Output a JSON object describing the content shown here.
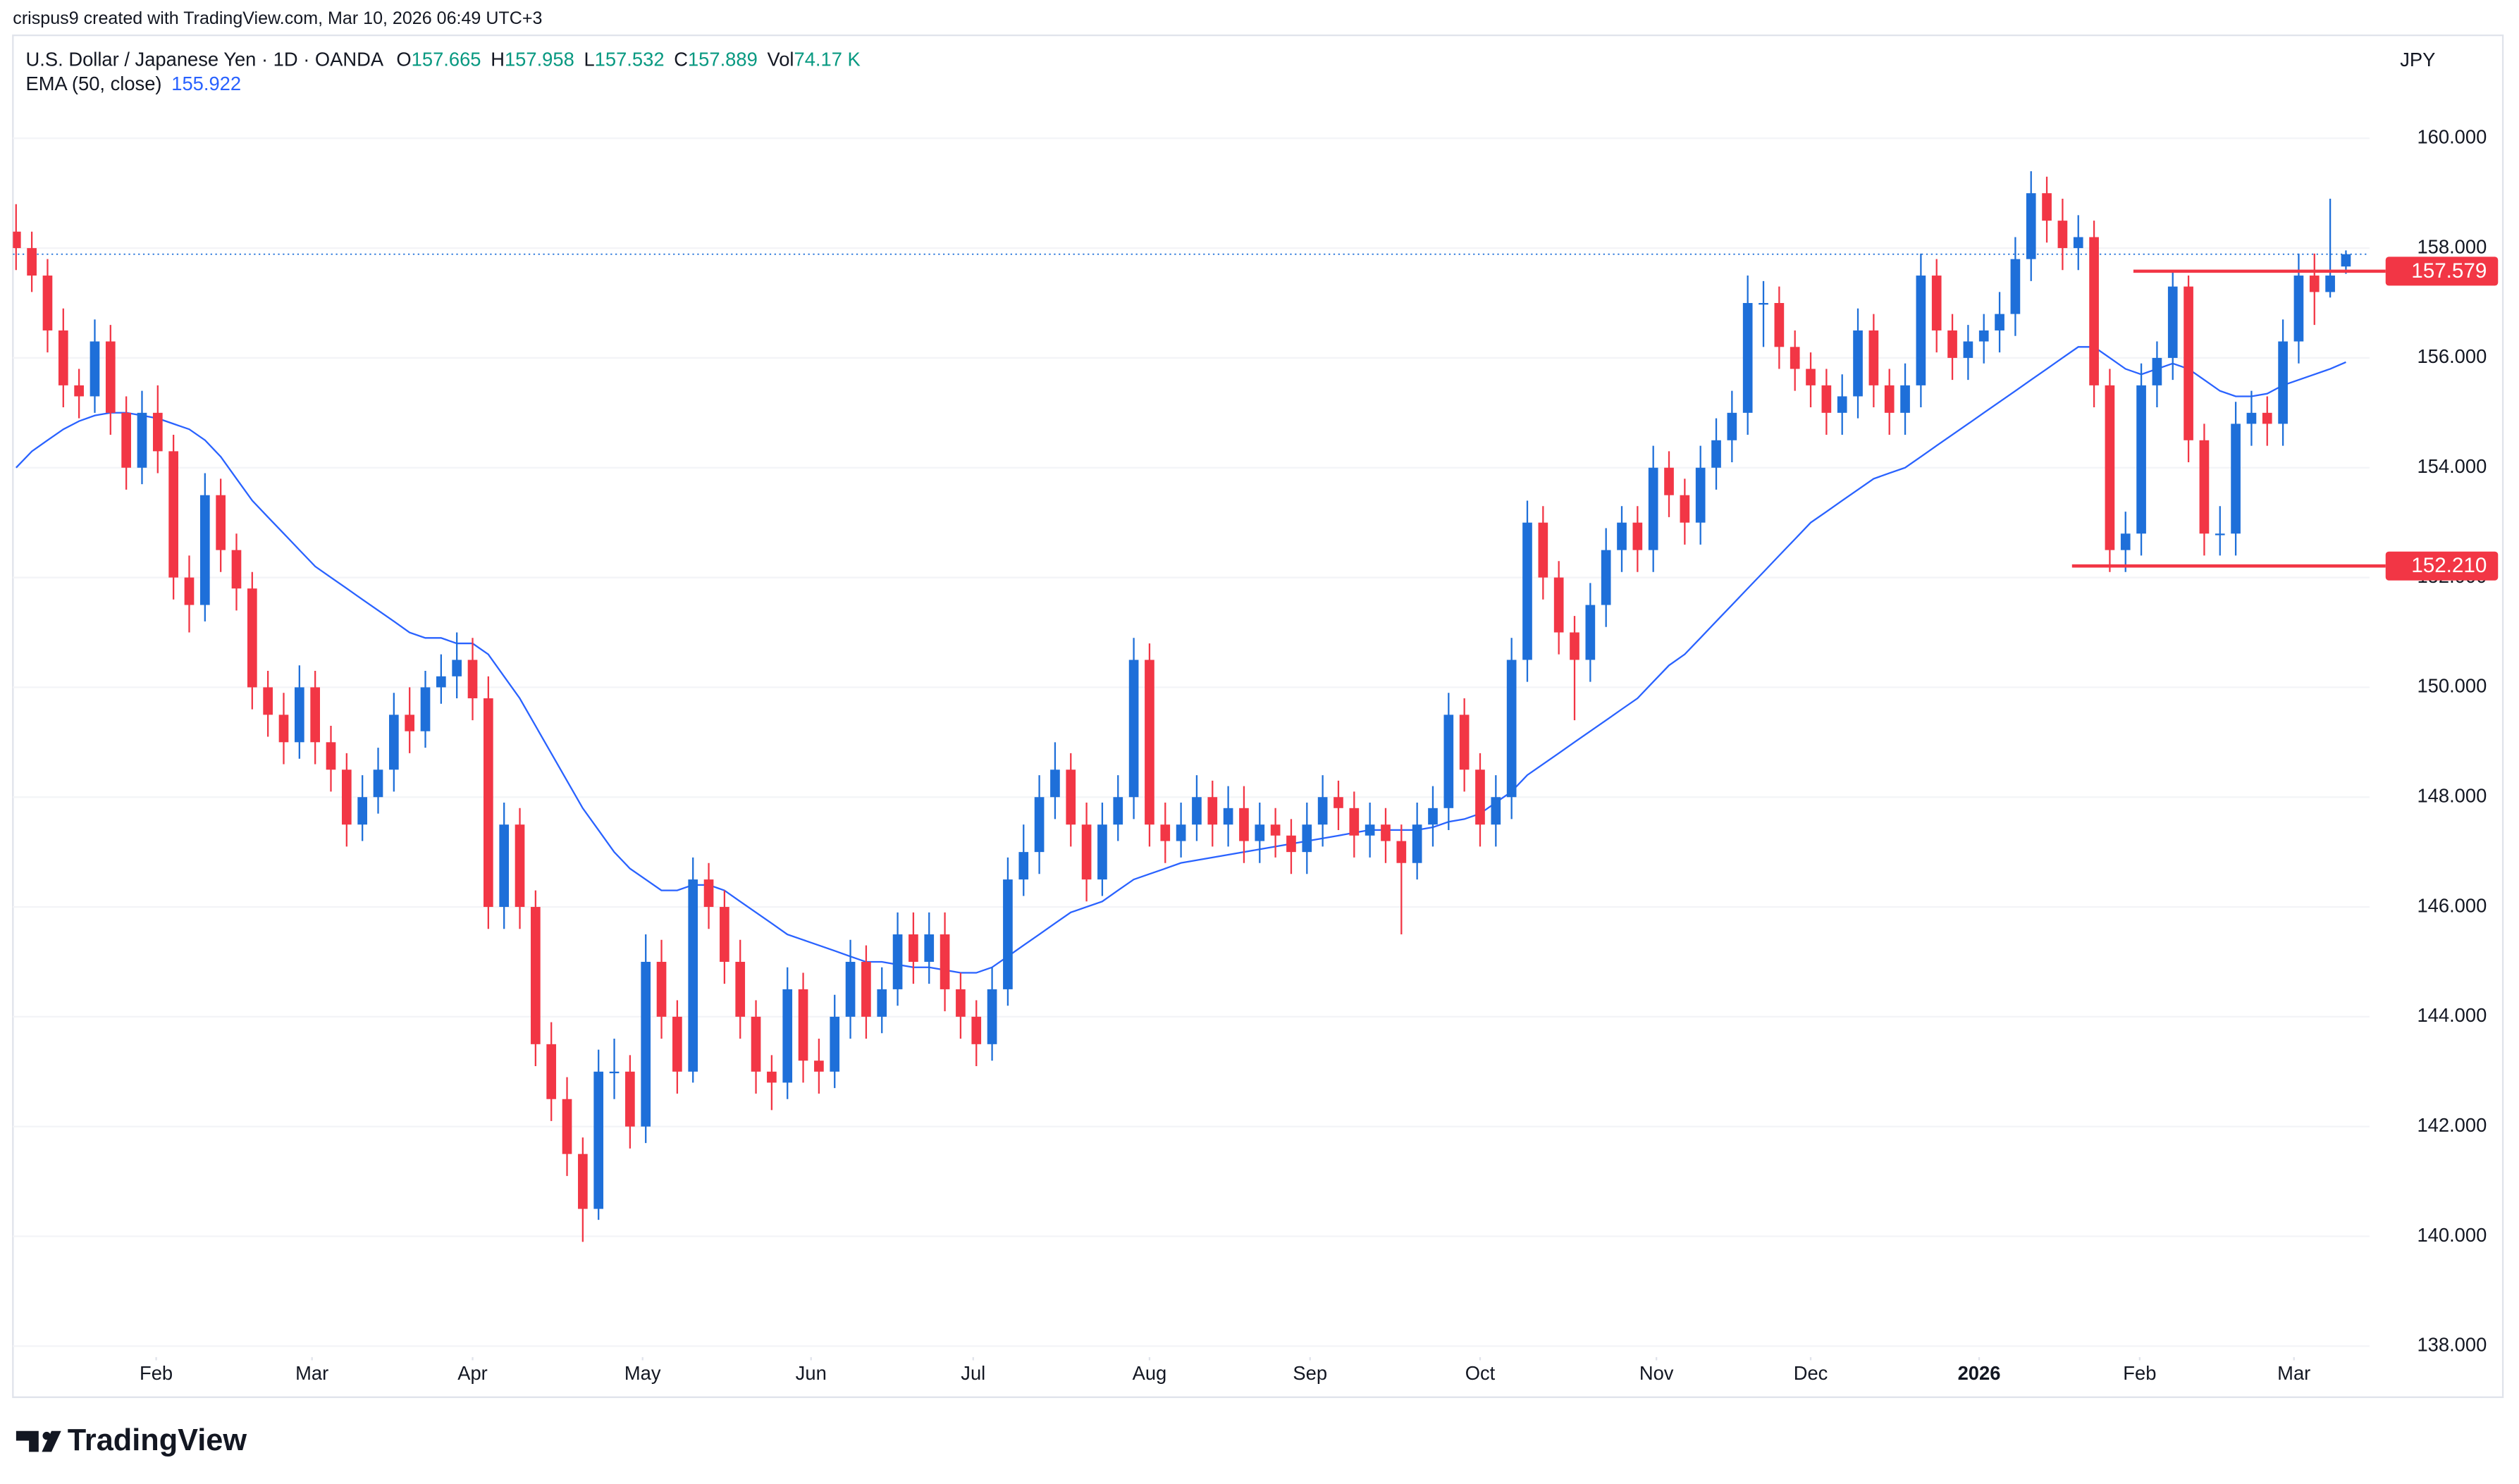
{
  "chart_data": {
    "type": "candlestick",
    "credit": "crispus9 created with TradingView.com, Mar 10, 2026 06:49 UTC+3",
    "title": "U.S. Dollar / Japanese Yen · 1D · OANDA",
    "legend_labels": {
      "open": "O",
      "high": "H",
      "low": "L",
      "close": "C",
      "volume": "Vol"
    },
    "volume": "74.17 K",
    "currency": "JPY",
    "brand": "TradingView",
    "up_color": "#1e6fd9",
    "down_color": "#f23645",
    "xlim": [
      -0.2,
      149.5
    ],
    "xticks": [
      {
        "value": 8.9,
        "label": "Feb"
      },
      {
        "value": 18.8,
        "label": "Mar"
      },
      {
        "value": 29,
        "label": "Apr"
      },
      {
        "value": 39.8,
        "label": "May"
      },
      {
        "value": 50.5,
        "label": "Jun"
      },
      {
        "value": 60.8,
        "label": "Jul"
      },
      {
        "value": 72,
        "label": "Aug"
      },
      {
        "value": 82.2,
        "label": "Sep"
      },
      {
        "value": 93,
        "label": "Oct"
      },
      {
        "value": 104.2,
        "label": "Nov"
      },
      {
        "value": 114,
        "label": "Dec"
      },
      {
        "value": 124.7,
        "label": "2026"
      },
      {
        "value": 134.9,
        "label": "Feb"
      },
      {
        "value": 144.7,
        "label": "Mar"
      }
    ],
    "ylim": [
      137.8,
      161.7
    ],
    "yticks": [
      {
        "value": 138,
        "label": "138.000"
      },
      {
        "value": 140,
        "label": "140.000"
      },
      {
        "value": 142,
        "label": "142.000"
      },
      {
        "value": 144,
        "label": "144.000"
      },
      {
        "value": 146,
        "label": "146.000"
      },
      {
        "value": 148,
        "label": "148.000"
      },
      {
        "value": 150,
        "label": "150.000"
      },
      {
        "value": 152,
        "label": "152.000"
      },
      {
        "value": 154,
        "label": "154.000"
      },
      {
        "value": 156,
        "label": "156.000"
      },
      {
        "value": 158,
        "label": "158.000"
      },
      {
        "value": 160,
        "label": "160.000"
      }
    ],
    "levels": [
      {
        "value": 157.579,
        "label": "157.579",
        "x_start": 134.5,
        "color": "#f23645"
      },
      {
        "value": 152.21,
        "label": "152.210",
        "x_start": 130.6,
        "color": "#f23645"
      }
    ],
    "open": [
      158.3,
      158.0,
      157.5,
      156.5,
      155.5,
      155.3,
      156.3,
      155.0,
      154.0,
      155.0,
      154.3,
      152.0,
      151.5,
      153.5,
      152.5,
      151.8,
      150.0,
      149.5,
      149.0,
      150.0,
      149.0,
      148.5,
      147.5,
      148.0,
      148.5,
      149.5,
      149.2,
      150.0,
      150.2,
      150.5,
      149.8,
      146.0,
      147.5,
      146.0,
      143.5,
      142.5,
      141.5,
      140.5,
      143.0,
      143.0,
      142.0,
      145.0,
      144.0,
      143.0,
      146.5,
      146.0,
      145.0,
      144.0,
      143.0,
      142.8,
      144.5,
      143.2,
      143.0,
      144.0,
      145.0,
      144.0,
      144.5,
      145.5,
      145.0,
      145.5,
      144.5,
      144.0,
      143.5,
      144.5,
      146.5,
      147.0,
      148.0,
      148.5,
      147.5,
      146.5,
      147.5,
      148.0,
      150.5,
      147.5,
      147.2,
      147.5,
      148.0,
      147.5,
      147.8,
      147.2,
      147.5,
      147.3,
      147.0,
      147.5,
      148.0,
      147.8,
      147.3,
      147.5,
      147.2,
      146.8,
      147.5,
      147.8,
      149.5,
      148.5,
      147.5,
      148.0,
      150.5,
      153.0,
      152.0,
      151.0,
      150.5,
      151.5,
      152.5,
      153.0,
      152.5,
      154.0,
      153.5,
      153.0,
      154.0,
      154.5,
      155.0,
      157.0,
      157.0,
      156.2,
      155.8,
      155.5,
      155.0,
      155.3,
      156.5,
      155.5,
      155.0,
      155.5,
      157.5,
      156.5,
      156.0,
      156.3,
      156.5,
      156.8,
      157.8,
      159.0,
      158.5,
      158.0,
      158.2,
      155.5,
      152.5,
      152.8,
      155.5,
      156.0,
      157.3,
      154.5,
      152.8,
      152.8,
      154.8,
      155.0,
      154.8,
      156.3,
      157.5,
      157.2,
      157.665
    ],
    "high": [
      158.8,
      158.3,
      157.8,
      156.9,
      155.8,
      156.7,
      156.6,
      155.3,
      155.4,
      155.5,
      154.6,
      152.4,
      153.9,
      153.8,
      152.8,
      152.1,
      150.3,
      149.9,
      150.4,
      150.3,
      149.3,
      148.8,
      148.4,
      148.9,
      149.9,
      150.0,
      150.3,
      150.6,
      151.0,
      150.9,
      150.2,
      147.9,
      147.8,
      146.3,
      143.9,
      142.9,
      141.8,
      143.4,
      143.6,
      143.3,
      145.5,
      145.4,
      144.3,
      146.9,
      146.8,
      146.3,
      145.4,
      144.3,
      143.3,
      144.9,
      144.8,
      143.6,
      144.4,
      145.4,
      145.3,
      144.9,
      145.9,
      145.9,
      145.9,
      145.9,
      144.8,
      144.3,
      144.9,
      146.9,
      147.5,
      148.4,
      149.0,
      148.8,
      147.9,
      147.9,
      148.4,
      150.9,
      150.8,
      147.9,
      147.9,
      148.4,
      148.3,
      148.2,
      148.2,
      147.9,
      147.8,
      147.6,
      147.9,
      148.4,
      148.3,
      148.1,
      147.9,
      147.8,
      147.5,
      147.9,
      148.2,
      149.9,
      149.8,
      148.8,
      148.4,
      150.9,
      153.4,
      153.3,
      152.3,
      151.3,
      151.9,
      152.9,
      153.3,
      153.3,
      154.4,
      154.3,
      153.8,
      154.4,
      154.9,
      155.4,
      157.5,
      157.4,
      157.3,
      156.5,
      156.1,
      155.8,
      155.7,
      156.9,
      156.8,
      155.8,
      155.9,
      157.9,
      157.8,
      156.8,
      156.6,
      156.8,
      157.2,
      158.2,
      159.4,
      159.3,
      158.9,
      158.6,
      158.5,
      155.8,
      153.2,
      155.9,
      156.3,
      157.6,
      157.5,
      154.8,
      153.3,
      155.2,
      155.4,
      155.3,
      156.7,
      157.9,
      157.9,
      158.9,
      157.958
    ],
    "low": [
      157.6,
      157.2,
      156.1,
      155.1,
      154.9,
      155.0,
      154.6,
      153.6,
      153.7,
      153.9,
      151.6,
      151.0,
      151.2,
      152.1,
      151.4,
      149.6,
      149.1,
      148.6,
      148.7,
      148.6,
      148.1,
      147.1,
      147.2,
      147.7,
      148.1,
      148.8,
      148.9,
      149.7,
      149.8,
      149.4,
      145.6,
      145.6,
      145.6,
      143.1,
      142.1,
      141.1,
      139.9,
      140.3,
      142.5,
      141.6,
      141.7,
      143.6,
      142.6,
      142.8,
      145.6,
      144.6,
      143.6,
      142.6,
      142.3,
      142.5,
      142.8,
      142.6,
      142.7,
      143.6,
      143.6,
      143.7,
      144.2,
      144.6,
      144.6,
      144.1,
      143.6,
      143.1,
      143.2,
      144.2,
      146.2,
      146.6,
      147.6,
      147.1,
      146.1,
      146.2,
      147.2,
      147.6,
      147.1,
      146.8,
      146.9,
      147.2,
      147.1,
      147.1,
      146.8,
      146.8,
      146.9,
      146.6,
      146.6,
      147.1,
      147.4,
      146.9,
      146.9,
      146.8,
      145.5,
      146.5,
      147.1,
      147.4,
      148.1,
      147.1,
      147.1,
      147.6,
      150.1,
      151.6,
      150.6,
      149.4,
      150.1,
      151.1,
      152.1,
      152.1,
      152.1,
      153.1,
      152.6,
      152.6,
      153.6,
      154.1,
      154.6,
      156.2,
      155.8,
      155.4,
      155.1,
      154.6,
      154.6,
      154.9,
      155.1,
      154.6,
      154.6,
      155.1,
      156.1,
      155.6,
      155.6,
      155.9,
      156.1,
      156.4,
      157.4,
      158.1,
      157.6,
      157.6,
      155.1,
      152.1,
      152.1,
      152.4,
      155.1,
      155.6,
      154.1,
      152.4,
      152.4,
      152.4,
      154.4,
      154.4,
      154.4,
      155.9,
      156.6,
      157.1,
      157.532
    ],
    "close": [
      158.0,
      157.5,
      156.5,
      155.5,
      155.3,
      156.3,
      155.0,
      154.0,
      155.0,
      154.3,
      152.0,
      151.5,
      153.5,
      152.5,
      151.8,
      150.0,
      149.5,
      149.0,
      150.0,
      149.0,
      148.5,
      147.5,
      148.0,
      148.5,
      149.5,
      149.2,
      150.0,
      150.2,
      150.5,
      149.8,
      146.0,
      147.5,
      146.0,
      143.5,
      142.5,
      141.5,
      140.5,
      143.0,
      143.0,
      142.0,
      145.0,
      144.0,
      143.0,
      146.5,
      146.0,
      145.0,
      144.0,
      143.0,
      142.8,
      144.5,
      143.2,
      143.0,
      144.0,
      145.0,
      144.0,
      144.5,
      145.5,
      145.0,
      145.5,
      144.5,
      144.0,
      143.5,
      144.5,
      146.5,
      147.0,
      148.0,
      148.5,
      147.5,
      146.5,
      147.5,
      148.0,
      150.5,
      147.5,
      147.2,
      147.5,
      148.0,
      147.5,
      147.8,
      147.2,
      147.5,
      147.3,
      147.0,
      147.5,
      148.0,
      147.8,
      147.3,
      147.5,
      147.2,
      146.8,
      147.5,
      147.8,
      149.5,
      148.5,
      147.5,
      148.0,
      150.5,
      153.0,
      152.0,
      151.0,
      150.5,
      151.5,
      152.5,
      153.0,
      152.5,
      154.0,
      153.5,
      153.0,
      154.0,
      154.5,
      155.0,
      157.0,
      157.0,
      156.2,
      155.8,
      155.5,
      155.0,
      155.3,
      156.5,
      155.5,
      155.0,
      155.5,
      157.5,
      156.5,
      156.0,
      156.3,
      156.5,
      156.8,
      157.8,
      159.0,
      158.5,
      158.0,
      158.2,
      155.5,
      152.5,
      152.8,
      155.5,
      156.0,
      157.3,
      154.5,
      152.8,
      152.8,
      154.8,
      155.0,
      154.8,
      156.3,
      157.5,
      157.2,
      157.5,
      157.889
    ],
    "ema": {
      "name": "EMA (50, close)",
      "color": "#2962ff",
      "values": [
        154.0,
        154.3,
        154.5,
        154.7,
        154.85,
        154.95,
        155.0,
        155.0,
        154.95,
        154.9,
        154.8,
        154.7,
        154.5,
        154.2,
        153.8,
        153.4,
        153.1,
        152.8,
        152.5,
        152.2,
        152.0,
        151.8,
        151.6,
        151.4,
        151.2,
        151.0,
        150.9,
        150.9,
        150.8,
        150.8,
        150.6,
        150.2,
        149.8,
        149.3,
        148.8,
        148.3,
        147.8,
        147.4,
        147.0,
        146.7,
        146.5,
        146.3,
        146.3,
        146.4,
        146.4,
        146.3,
        146.1,
        145.9,
        145.7,
        145.5,
        145.4,
        145.3,
        145.2,
        145.1,
        145.0,
        145.0,
        144.95,
        144.9,
        144.9,
        144.85,
        144.8,
        144.8,
        144.9,
        145.1,
        145.3,
        145.5,
        145.7,
        145.9,
        146.0,
        146.1,
        146.3,
        146.5,
        146.6,
        146.7,
        146.8,
        146.85,
        146.9,
        146.95,
        147.0,
        147.05,
        147.1,
        147.15,
        147.2,
        147.25,
        147.3,
        147.35,
        147.4,
        147.4,
        147.4,
        147.4,
        147.45,
        147.55,
        147.6,
        147.7,
        147.9,
        148.1,
        148.4,
        148.6,
        148.8,
        149.0,
        149.2,
        149.4,
        149.6,
        149.8,
        150.1,
        150.4,
        150.6,
        150.9,
        151.2,
        151.5,
        151.8,
        152.1,
        152.4,
        152.7,
        153.0,
        153.2,
        153.4,
        153.6,
        153.8,
        153.9,
        154.0,
        154.2,
        154.4,
        154.6,
        154.8,
        155.0,
        155.2,
        155.4,
        155.6,
        155.8,
        156.0,
        156.2,
        156.2,
        156.0,
        155.8,
        155.7,
        155.8,
        155.9,
        155.8,
        155.6,
        155.4,
        155.3,
        155.3,
        155.35,
        155.5,
        155.6,
        155.7,
        155.8,
        155.922
      ]
    }
  }
}
